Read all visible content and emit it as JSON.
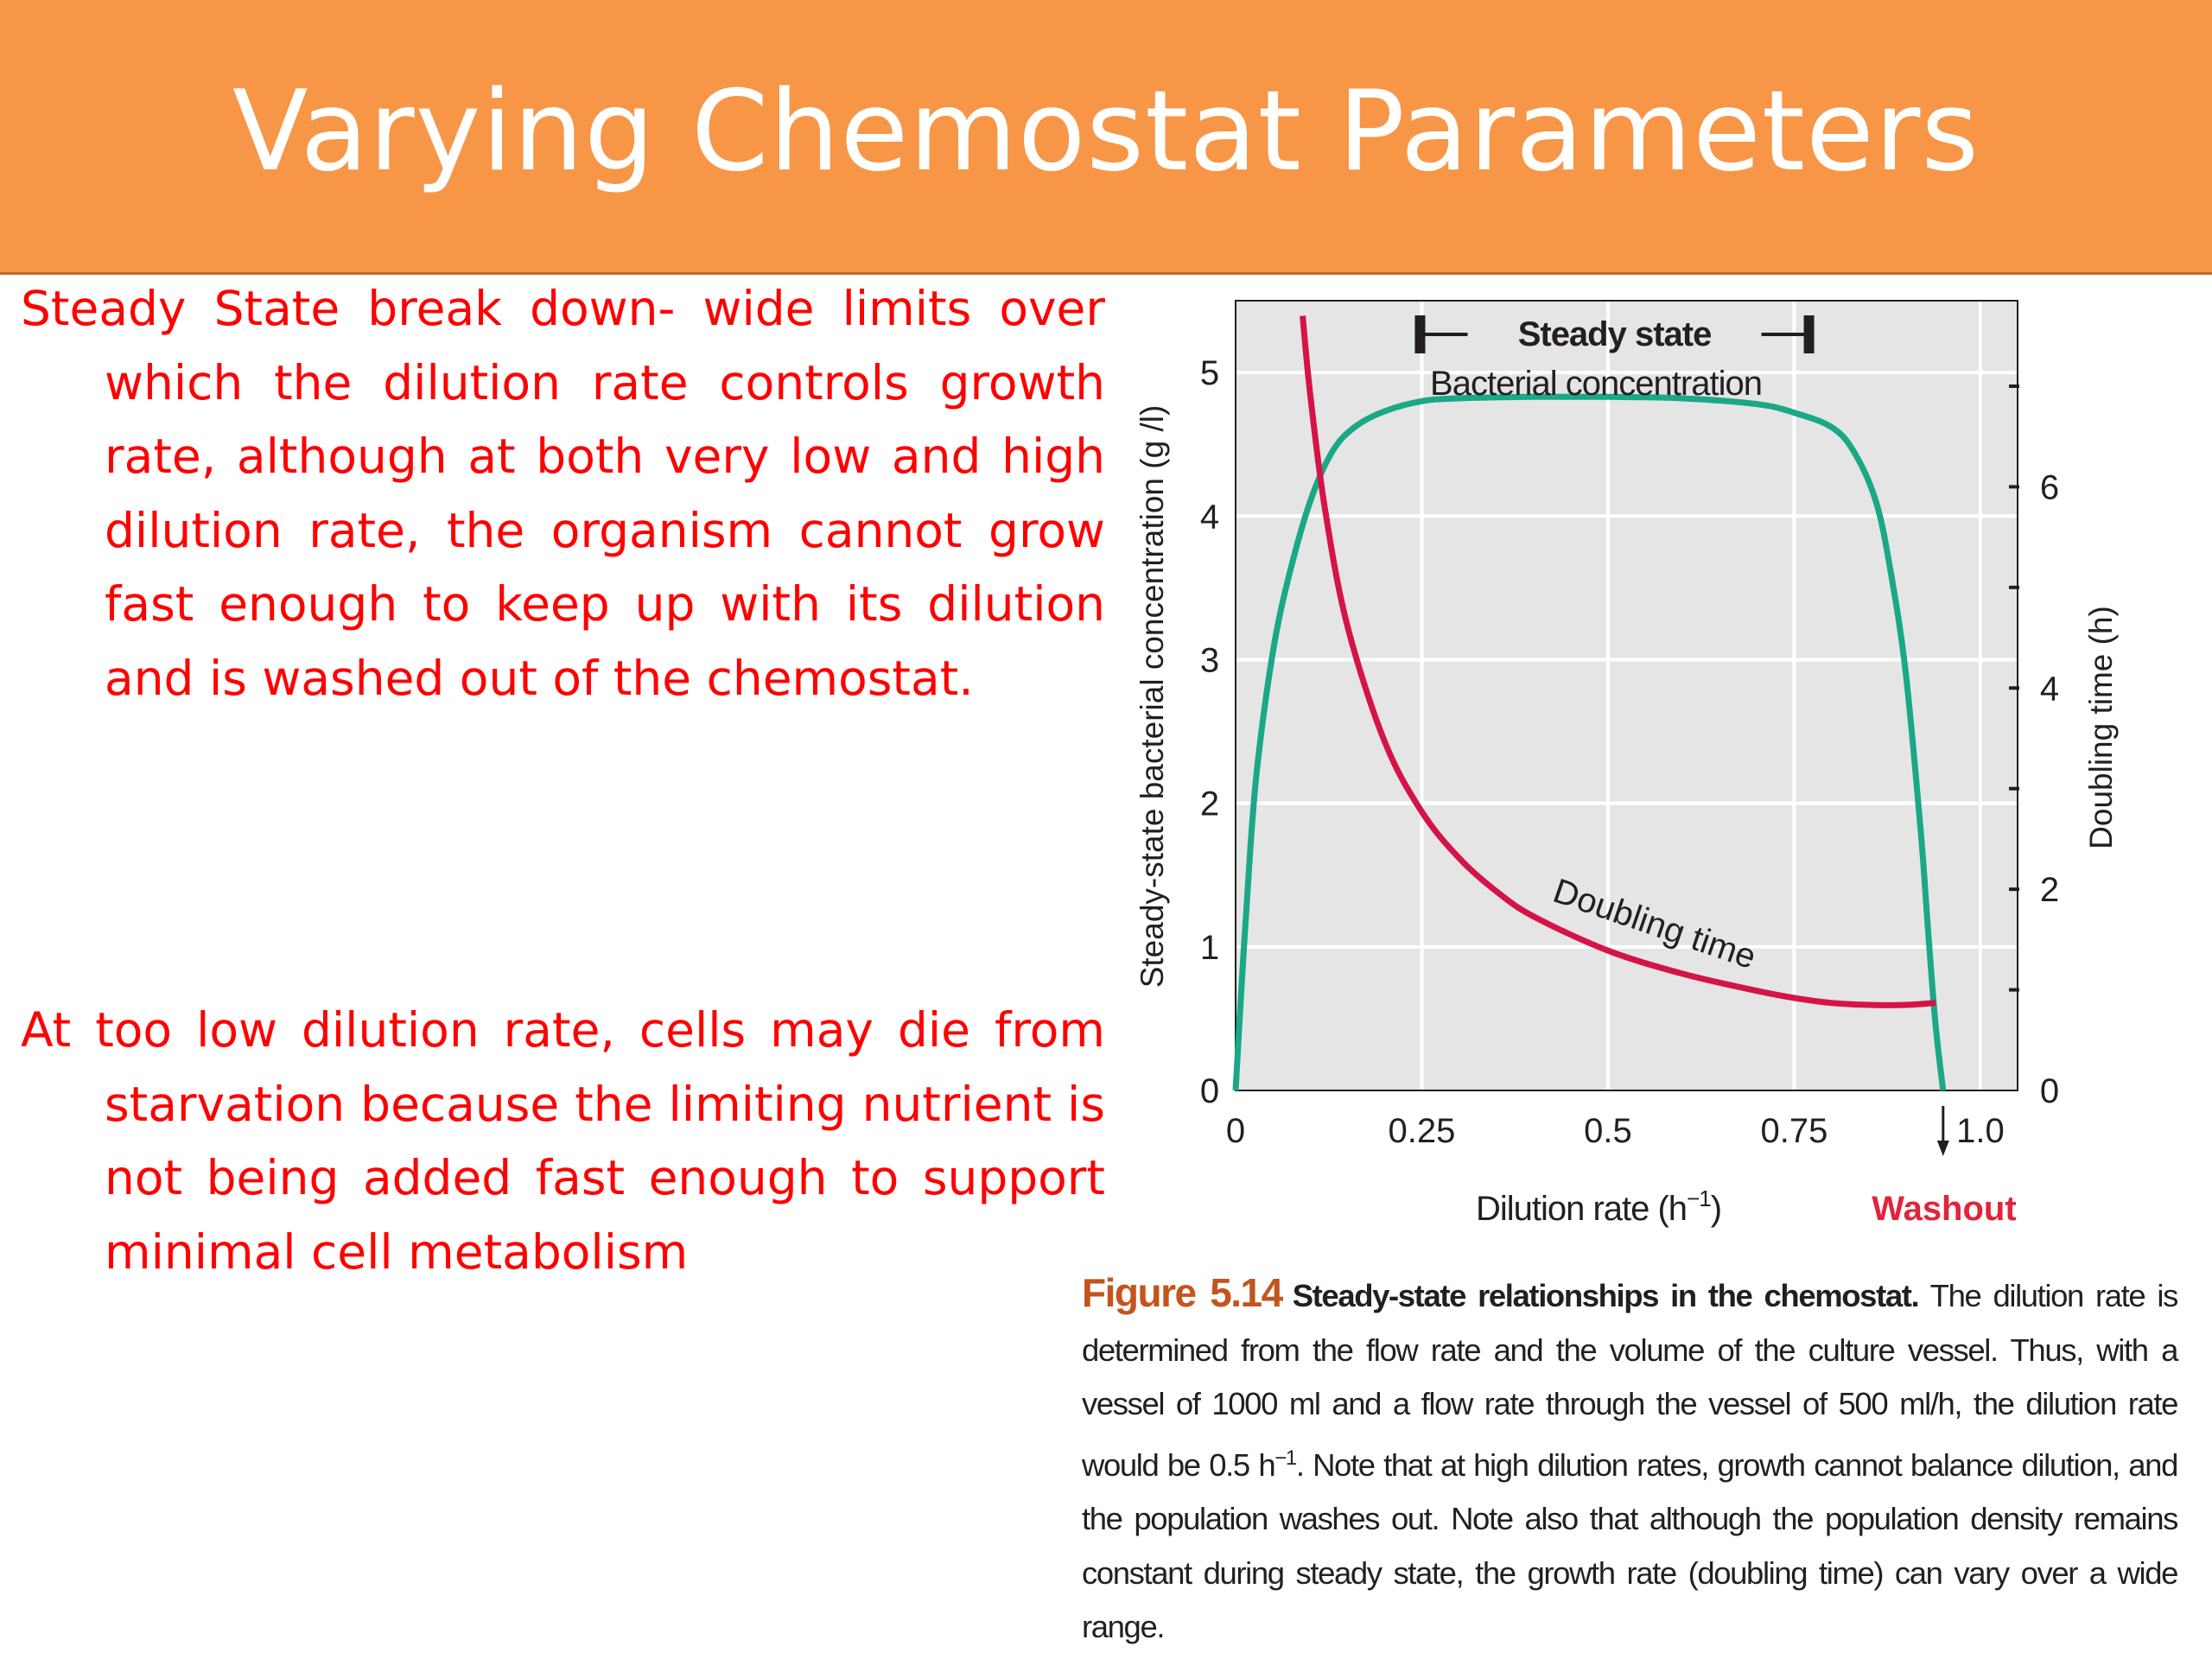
{
  "slide": {
    "title": "Varying Chemostat Parameters",
    "title_bar_color": "#f79646",
    "text_color": "#ff0000"
  },
  "paragraphs": [
    "Steady State break down- wide limits over which the dilution rate controls growth rate, although at both very low and high dilution rate, the organism cannot grow fast enough to keep up with its dilution and is washed out of the chemostat.",
    "At too low dilution rate, cells may die from starvation because the limiting nutrient is not being added fast enough to support minimal cell metabolism"
  ],
  "caption": {
    "figure_label": "Figure 5.14",
    "bold_text": "Steady-state relationships in the chemostat.",
    "body_1": " The dilution rate is determined from the flow rate and the volume of the culture vessel. Thus, with a vessel of 1000 ml and a flow rate through the vessel of 500 ml/h, the dilution rate would be 0.5 h",
    "sup": "−1",
    "body_2": ". Note that at high dilution rates, growth cannot balance dilution, and the population washes out. Note also that although the population density remains constant during steady state, the growth rate (doubling time) can vary over a wide range."
  },
  "chart_data": {
    "type": "line",
    "title": "",
    "xlabel": "Dilution rate (h",
    "xlabel_sup": "−1",
    "xlabel_end": ")",
    "ylabel": "Steady-state bacterial concentration (g /l)",
    "y2label": "Doubling time (h)",
    "xlim": [
      0,
      1.05
    ],
    "ylim": [
      0,
      5.5
    ],
    "y2lim": [
      0,
      7.85
    ],
    "x_ticks": [
      0,
      0.25,
      0.5,
      0.75,
      1.0
    ],
    "x_tick_labels": [
      "0",
      "0.25",
      "0.5",
      "0.75",
      "1.0"
    ],
    "y_ticks": [
      0,
      1,
      2,
      3,
      4,
      5
    ],
    "y_tick_labels": [
      "0",
      "1",
      "2",
      "3",
      "4",
      "5"
    ],
    "y2_ticks": [
      0,
      2,
      4,
      6
    ],
    "y2_tick_labels": [
      "0",
      "2",
      "4",
      "6"
    ],
    "y2_minor_ticks": [
      1,
      3,
      5,
      7
    ],
    "grid": true,
    "plot_background": "#e5e5e5",
    "series": [
      {
        "name": "Bacterial concentration",
        "axis": "left",
        "color": "#1aa886",
        "x": [
          0,
          0.01,
          0.02,
          0.03,
          0.05,
          0.07,
          0.1,
          0.13,
          0.16,
          0.2,
          0.25,
          0.3,
          0.4,
          0.5,
          0.6,
          0.7,
          0.75,
          0.8,
          0.83,
          0.86,
          0.88,
          0.9,
          0.92,
          0.93,
          0.94,
          0.95
        ],
        "y": [
          0,
          0.9,
          1.7,
          2.3,
          3.05,
          3.55,
          4.1,
          4.45,
          4.62,
          4.73,
          4.8,
          4.82,
          4.83,
          4.83,
          4.82,
          4.78,
          4.72,
          4.62,
          4.45,
          4.1,
          3.6,
          2.9,
          1.8,
          1.1,
          0.45,
          0
        ]
      },
      {
        "name": "Doubling time",
        "axis": "right",
        "color": "#d41447",
        "x": [
          0.09,
          0.1,
          0.12,
          0.15,
          0.2,
          0.25,
          0.3,
          0.35,
          0.4,
          0.5,
          0.6,
          0.7,
          0.75,
          0.8,
          0.85,
          0.9,
          0.94
        ],
        "y": [
          7.7,
          6.93,
          5.78,
          4.62,
          3.47,
          2.77,
          2.31,
          1.98,
          1.73,
          1.39,
          1.16,
          0.99,
          0.92,
          0.87,
          0.85,
          0.85,
          0.87
        ]
      }
    ],
    "annotations": {
      "steady_state": "Steady state",
      "steady_state_range": [
        0.25,
        0.72
      ],
      "bacterial_concentration": "Bacterial concentration",
      "doubling_time": "Doubling time",
      "washout": "Washout",
      "washout_x": 0.95,
      "washout_color": "#e0243b"
    }
  }
}
